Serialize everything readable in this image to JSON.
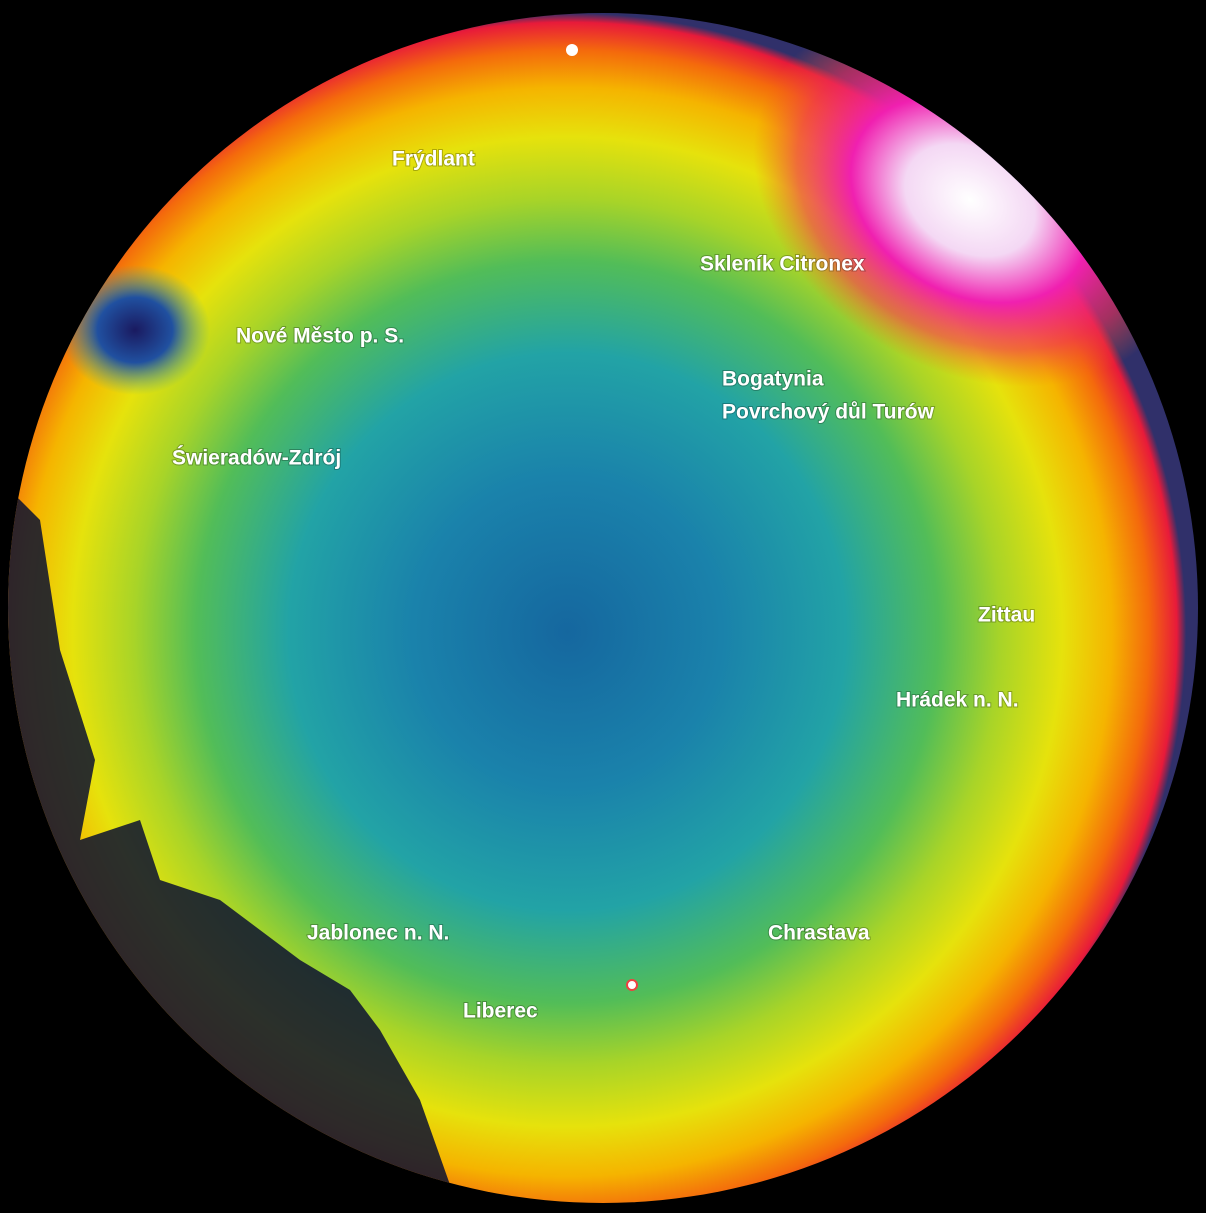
{
  "labels": [
    "Frýdlant",
    "Skleník Citronex",
    "Nové Město p. S.",
    "Bogatynia",
    "Povrchový důl Turów",
    "Świeradów-Zdrój",
    "Zittau",
    "Hrádek n. N.",
    "Jablonec n. N.",
    "Chrastava",
    "Liberec"
  ]
}
